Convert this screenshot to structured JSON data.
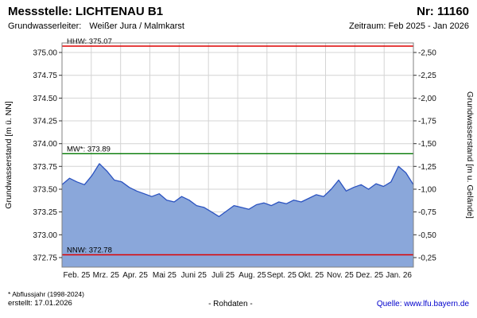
{
  "header": {
    "station_label": "Messstelle: LICHTENAU B1",
    "number_label": "Nr: 11160",
    "aquifer_label": "Grundwasserleiter:",
    "aquifer_value": "Weißer Jura / Malmkarst",
    "period_label": "Zeitraum: Feb 2025 - Jan 2026"
  },
  "footer": {
    "note": "* Abflussjahr (1998-2024)",
    "created": "erstellt: 17.01.2026",
    "center": "- Rohdaten -",
    "source": "Quelle: www.lfu.bayern.de"
  },
  "chart_data": {
    "type": "area",
    "title": "",
    "ylabel_left": "Grundwasserstand [m ü. NN]",
    "ylabel_right": "Grundwasserstand [m u. Gelände]",
    "x_tick_labels": [
      "Feb. 25",
      "Mrz. 25",
      "Apr. 25",
      "Mai 25",
      "Juni 25",
      "Juli 25",
      "Aug. 25",
      "Sept. 25",
      "Okt. 25",
      "Nov. 25",
      "Dez. 25",
      "Jan. 26"
    ],
    "y_ticks": [
      372.75,
      373.0,
      373.25,
      373.5,
      373.75,
      374.0,
      374.25,
      374.5,
      374.75,
      375.0
    ],
    "y_tick_labels_left": [
      "372.75",
      "373.00",
      "373.25",
      "373.50",
      "373.75",
      "374.00",
      "374.25",
      "374.50",
      "374.75",
      "375.00"
    ],
    "y_tick_labels_right": [
      "-0,25",
      "-0,50",
      "-0,75",
      "-1,00",
      "-1,25",
      "-1,50",
      "-1,75",
      "-2,00",
      "-2,25",
      "-2,50"
    ],
    "ylim": [
      372.645,
      375.105
    ],
    "grid": true,
    "legend": "none",
    "series": [
      {
        "name": "Grundwasserstand (Rohdaten)",
        "values": [
          373.55,
          373.62,
          373.58,
          373.55,
          373.65,
          373.78,
          373.7,
          373.6,
          373.58,
          373.52,
          373.48,
          373.45,
          373.42,
          373.45,
          373.38,
          373.36,
          373.42,
          373.38,
          373.32,
          373.3,
          373.25,
          373.2,
          373.26,
          373.32,
          373.3,
          373.28,
          373.33,
          373.35,
          373.32,
          373.36,
          373.34,
          373.38,
          373.36,
          373.4,
          373.44,
          373.42,
          373.5,
          373.6,
          373.48,
          373.52,
          373.55,
          373.5,
          373.56,
          373.53,
          373.58,
          373.75,
          373.68,
          373.55
        ]
      }
    ],
    "reference_lines": [
      {
        "name": "HHW",
        "label": "HHW: 375.07",
        "value": 375.07,
        "color": "#dd0000"
      },
      {
        "name": "MW",
        "label": "MW*: 373.89",
        "value": 373.89,
        "color": "#007700"
      },
      {
        "name": "NNW",
        "label": "NNW: 372.78",
        "value": 372.78,
        "color": "#dd0000"
      }
    ],
    "colors": {
      "area_fill": "#8aa7da",
      "area_stroke": "#2a52c0",
      "grid": "#d4d4d4",
      "plot_border": "#808080",
      "tick": "#333333",
      "text": "#111111"
    }
  }
}
